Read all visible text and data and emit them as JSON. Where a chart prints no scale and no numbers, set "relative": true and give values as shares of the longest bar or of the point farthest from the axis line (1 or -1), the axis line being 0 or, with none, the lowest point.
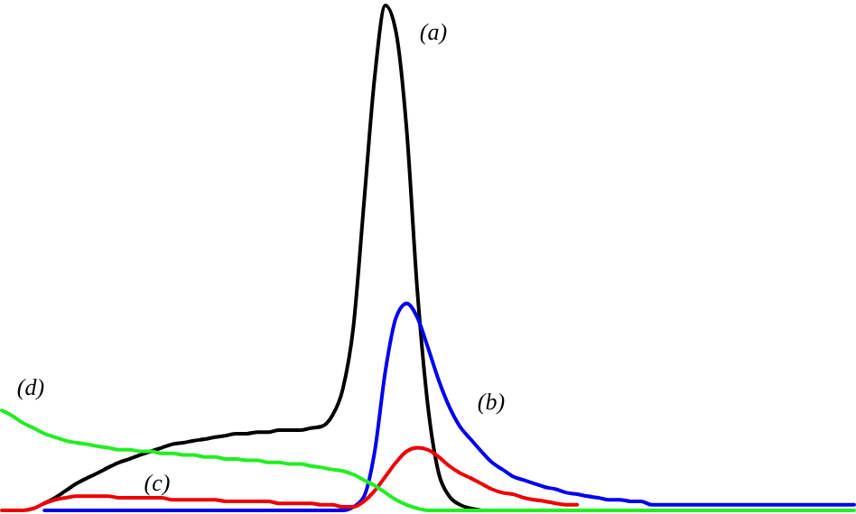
{
  "chart_data": {
    "type": "line",
    "relative": true,
    "marker": "none",
    "line_style": "solid",
    "grid": false,
    "legend": false,
    "categories": [
      null,
      null,
      null,
      null,
      null,
      null,
      null,
      null,
      null,
      null,
      null,
      null,
      null,
      null,
      null,
      null,
      null,
      null,
      null,
      null,
      null,
      null,
      null,
      null,
      null,
      null,
      null,
      null,
      null,
      null,
      null,
      null,
      null,
      null,
      null,
      null,
      null,
      null,
      null,
      null,
      null,
      null,
      null,
      null,
      null,
      null,
      null,
      null,
      null,
      null,
      null,
      null,
      null,
      null,
      null,
      null,
      null,
      null,
      null,
      null,
      null,
      null,
      null,
      null,
      null,
      null,
      null,
      null,
      null,
      null,
      null,
      null,
      null,
      null,
      null,
      null,
      null,
      null,
      null,
      null,
      null
    ],
    "series": [
      {
        "name": "(a)",
        "color": "#000000",
        "values": [
          null,
          null,
          null,
          null,
          0.014,
          0.025,
          0.039,
          0.053,
          0.064,
          0.074,
          0.085,
          0.095,
          0.102,
          0.11,
          0.117,
          0.124,
          0.131,
          0.134,
          0.138,
          0.141,
          0.145,
          0.148,
          0.152,
          0.152,
          0.155,
          0.155,
          0.159,
          0.159,
          0.159,
          0.163,
          0.166,
          0.187,
          0.24,
          0.364,
          0.611,
          0.859,
          1,
          0.947,
          0.753,
          0.435,
          0.205,
          0.074,
          0.028,
          0.011,
          0.004,
          0,
          null,
          null,
          null,
          null,
          null,
          null,
          null,
          null,
          null,
          null,
          null,
          null,
          null,
          null,
          null,
          null,
          null,
          null,
          null,
          null,
          null,
          null,
          null,
          null,
          null,
          null,
          null,
          null,
          null,
          null,
          null,
          null,
          null,
          null,
          null
        ]
      },
      {
        "name": "(b)",
        "color": "#0000ee",
        "values": [
          null,
          null,
          null,
          null,
          0,
          0,
          0,
          0,
          0,
          0,
          0,
          0,
          0,
          0,
          0,
          0,
          0,
          0,
          0,
          0,
          0,
          0,
          0,
          0,
          0,
          0,
          0,
          0,
          0,
          0,
          0,
          0,
          0,
          0.007,
          0.028,
          0.117,
          0.276,
          0.382,
          0.41,
          0.382,
          0.322,
          0.258,
          0.205,
          0.166,
          0.141,
          0.117,
          0.095,
          0.081,
          0.067,
          0.06,
          0.053,
          0.046,
          0.042,
          0.035,
          0.032,
          0.028,
          0.025,
          0.021,
          0.021,
          0.018,
          0.018,
          0.011,
          0.011,
          0.011,
          0.011,
          0.011,
          0.011,
          0.011,
          0.011,
          0.011,
          0.011,
          0.011,
          0.011,
          0.011,
          0.011,
          0.011,
          0.011,
          0.011,
          0.011,
          0.011,
          0.011
        ]
      },
      {
        "name": "(c)",
        "color": "#ee0000",
        "values": [
          0,
          0,
          0,
          0.004,
          0.014,
          0.021,
          0.025,
          0.028,
          0.028,
          0.028,
          0.028,
          0.025,
          0.025,
          0.025,
          0.025,
          0.025,
          0.021,
          0.021,
          0.021,
          0.021,
          0.021,
          0.018,
          0.018,
          0.018,
          0.018,
          0.018,
          0.014,
          0.014,
          0.014,
          0.014,
          0.011,
          0.011,
          0.007,
          0.007,
          0.018,
          0.039,
          0.067,
          0.095,
          0.117,
          0.124,
          0.12,
          0.106,
          0.088,
          0.074,
          0.064,
          0.053,
          0.042,
          0.035,
          0.032,
          0.025,
          0.021,
          0.018,
          0.014,
          0.011,
          0.011,
          null,
          null,
          null,
          null,
          null,
          null,
          null,
          null,
          null,
          null,
          null,
          null,
          null,
          null,
          null,
          null,
          null,
          null,
          null,
          null,
          null,
          null,
          null,
          null,
          null,
          null
        ]
      },
      {
        "name": "(d)",
        "color": "#22ee22",
        "values": [
          0.198,
          0.187,
          0.173,
          0.163,
          0.152,
          0.145,
          0.138,
          0.134,
          0.131,
          0.127,
          0.124,
          0.12,
          0.12,
          0.117,
          0.117,
          0.113,
          0.113,
          0.11,
          0.11,
          0.106,
          0.106,
          0.102,
          0.102,
          0.099,
          0.099,
          0.095,
          0.095,
          0.092,
          0.092,
          0.088,
          0.085,
          0.081,
          0.078,
          0.071,
          0.06,
          0.049,
          0.035,
          0.021,
          0.011,
          0.004,
          0,
          0,
          0,
          0,
          0,
          0,
          0,
          0,
          0,
          0,
          0,
          0,
          0,
          0,
          0,
          0,
          0,
          0,
          0,
          0,
          0,
          0,
          0,
          0,
          0,
          0,
          0,
          0,
          0,
          0,
          0,
          0,
          0,
          0,
          0,
          0,
          0,
          0,
          0,
          0,
          0
        ]
      }
    ]
  }
}
